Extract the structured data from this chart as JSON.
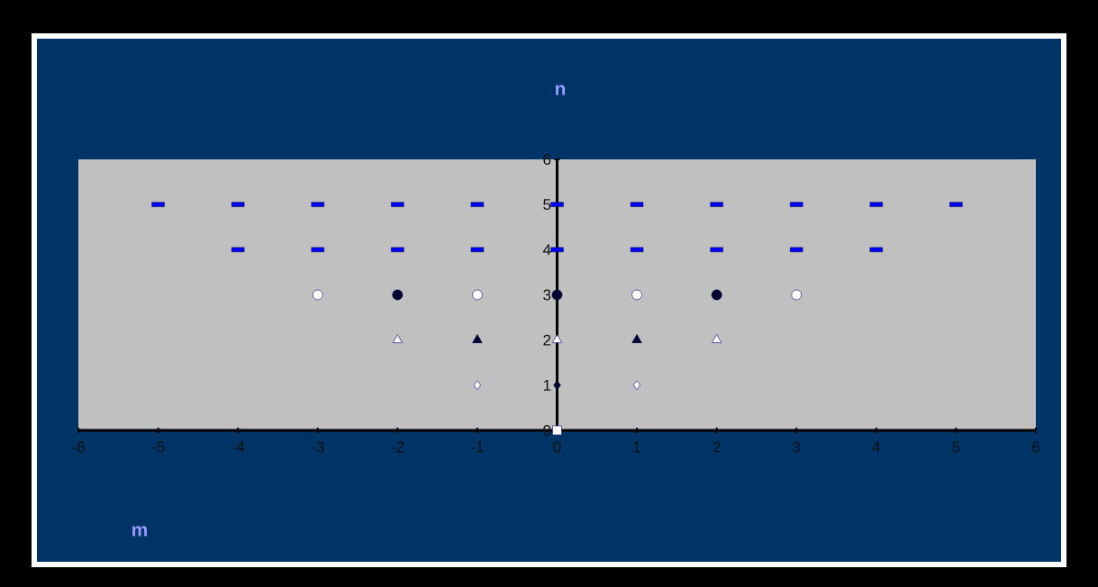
{
  "chart_data": {
    "type": "scatter",
    "annotations": [
      "n",
      "m"
    ],
    "xlim": [
      -6,
      6
    ],
    "ylim": [
      0,
      6
    ],
    "xticks": [
      -6,
      -5,
      -4,
      -3,
      -2,
      -1,
      0,
      1,
      2,
      3,
      4,
      5,
      6
    ],
    "yticks": [
      0,
      1,
      2,
      3,
      4,
      5,
      6
    ],
    "grid": false,
    "series": [
      {
        "marker": "square",
        "color": "#ffffff",
        "x": [
          0
        ],
        "values": [
          0
        ]
      },
      {
        "marker": "diamond",
        "color": "#ffffff",
        "x": [
          -1,
          1
        ],
        "values": [
          1,
          1
        ]
      },
      {
        "marker": "diamond",
        "color": "#000033",
        "x": [
          0
        ],
        "values": [
          1
        ]
      },
      {
        "marker": "triangle",
        "color": "#ffffff",
        "x": [
          -2,
          0,
          2
        ],
        "values": [
          2,
          2,
          2
        ]
      },
      {
        "marker": "triangle",
        "color": "#000033",
        "x": [
          -1,
          1
        ],
        "values": [
          2,
          2
        ]
      },
      {
        "marker": "circle",
        "color": "#ffffff",
        "x": [
          -3,
          -1,
          1,
          3
        ],
        "values": [
          3,
          3,
          3,
          3
        ]
      },
      {
        "marker": "circle",
        "color": "#000033",
        "x": [
          -2,
          0,
          2
        ],
        "values": [
          3,
          3,
          3
        ]
      },
      {
        "color": "#0000ff",
        "x": [
          -4,
          -3,
          -2,
          -1,
          0,
          1,
          2,
          3,
          4
        ],
        "values": [
          4,
          4,
          4,
          4,
          4,
          4,
          4,
          4,
          4
        ]
      },
      {
        "color": "#0000ff",
        "x": [
          -5,
          -4,
          -3,
          -2,
          -1,
          0,
          1,
          2,
          3,
          4,
          5
        ],
        "values": [
          5,
          5,
          5,
          5,
          5,
          5,
          5,
          5,
          5,
          5,
          5
        ]
      }
    ]
  }
}
